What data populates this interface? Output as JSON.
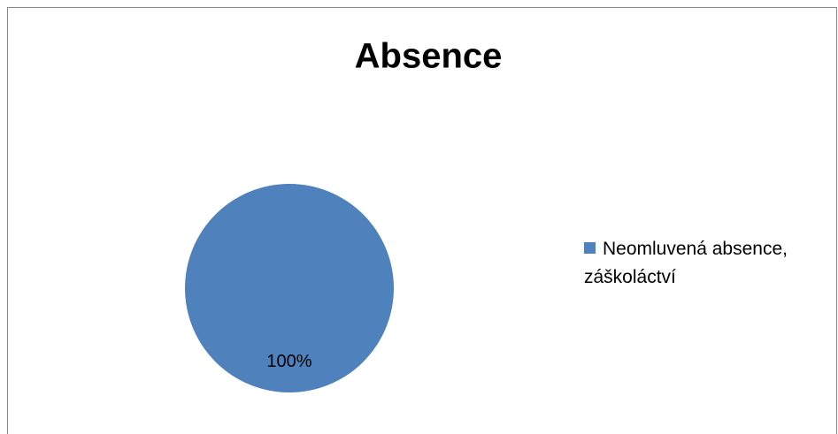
{
  "chart_data": {
    "type": "pie",
    "title": "Absence",
    "categories": [
      "Neomluvená absence, záškoláctví"
    ],
    "values": [
      100
    ],
    "value_labels": [
      "100%"
    ],
    "colors": [
      "#4f81bd"
    ],
    "legend": "right"
  }
}
